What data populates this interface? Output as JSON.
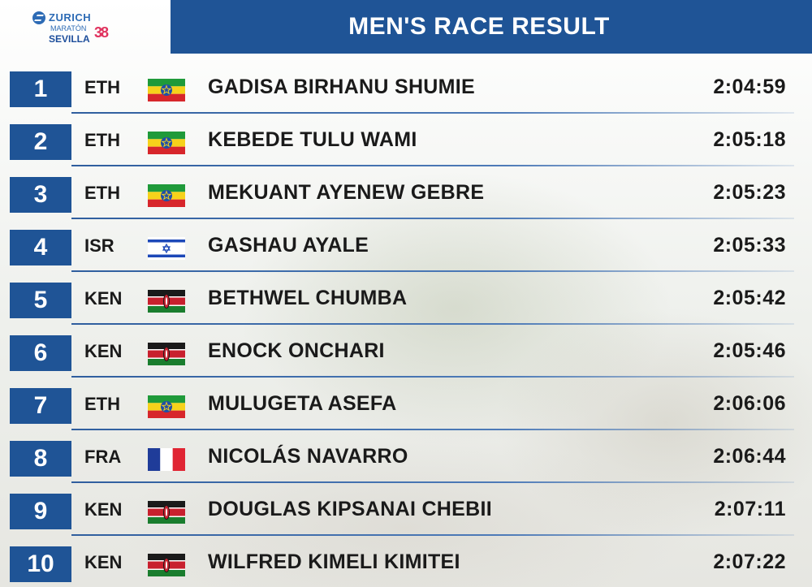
{
  "logo": {
    "line1": "ZURICH",
    "line2": "MARATÓN",
    "line3": "SEVILLA",
    "mark": "38"
  },
  "title": "MEN'S RACE RESULT",
  "colors": {
    "brand_blue": "#1f5496",
    "text": "#1a1a1a"
  },
  "results": [
    {
      "rank": "1",
      "country": "ETH",
      "flag": "ethiopia-flag",
      "name": "GADISA BIRHANU SHUMIE",
      "time": "2:04:59"
    },
    {
      "rank": "2",
      "country": "ETH",
      "flag": "ethiopia-flag",
      "name": "KEBEDE TULU WAMI",
      "time": "2:05:18"
    },
    {
      "rank": "3",
      "country": "ETH",
      "flag": "ethiopia-flag",
      "name": "MEKUANT AYENEW GEBRE",
      "time": "2:05:23"
    },
    {
      "rank": "4",
      "country": "ISR",
      "flag": "israel-flag",
      "name": "GASHAU AYALE",
      "time": "2:05:33"
    },
    {
      "rank": "5",
      "country": "KEN",
      "flag": "kenya-flag",
      "name": "BETHWEL CHUMBA",
      "time": "2:05:42"
    },
    {
      "rank": "6",
      "country": "KEN",
      "flag": "kenya-flag",
      "name": "ENOCK ONCHARI",
      "time": "2:05:46"
    },
    {
      "rank": "7",
      "country": "ETH",
      "flag": "ethiopia-flag",
      "name": "MULUGETA ASEFA",
      "time": "2:06:06"
    },
    {
      "rank": "8",
      "country": "FRA",
      "flag": "france-flag",
      "name": "NICOLÁS NAVARRO",
      "time": "2:06:44"
    },
    {
      "rank": "9",
      "country": "KEN",
      "flag": "kenya-flag",
      "name": "DOUGLAS KIPSANAI CHEBII",
      "time": "2:07:11"
    },
    {
      "rank": "10",
      "country": "KEN",
      "flag": "kenya-flag",
      "name": "WILFRED KIMELI KIMITEI",
      "time": "2:07:22"
    }
  ]
}
